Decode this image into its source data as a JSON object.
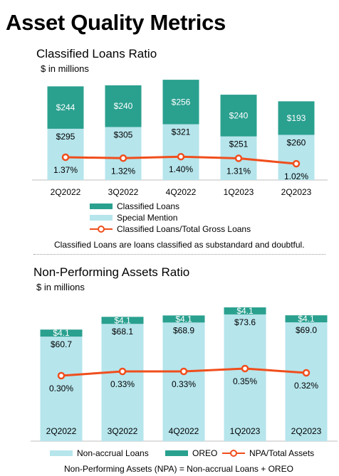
{
  "title": "Asset Quality Metrics",
  "colors": {
    "teal_dark": "#2aa08f",
    "teal_light": "#b6e5ec",
    "line": "#f04e1c"
  },
  "chart_data": [
    {
      "type": "bar",
      "title": "Classified Loans Ratio",
      "subtitle": "$ in millions",
      "stacked": true,
      "categories": [
        "2Q2022",
        "3Q2022",
        "4Q2022",
        "1Q2023",
        "2Q2023"
      ],
      "series": [
        {
          "name": "Special Mention",
          "type": "bar",
          "values": [
            295,
            305,
            321,
            251,
            260
          ],
          "labels": [
            "$295",
            "$305",
            "$321",
            "$251",
            "$260"
          ],
          "color": "#b6e5ec"
        },
        {
          "name": "Classified Loans",
          "type": "bar",
          "values": [
            244,
            240,
            256,
            240,
            193
          ],
          "labels": [
            "$244",
            "$240",
            "$256",
            "$240",
            "$193"
          ],
          "color": "#2aa08f"
        },
        {
          "name": "Classified Loans/Total Gross Loans",
          "type": "line",
          "values": [
            1.37,
            1.32,
            1.4,
            1.31,
            1.02
          ],
          "labels": [
            "1.37%",
            "1.32%",
            "1.40%",
            "1.31%",
            "1.02%"
          ],
          "color": "#f04e1c"
        }
      ],
      "legend": "bottom",
      "grid": false,
      "note": "Classified Loans are loans classified as substandard and doubtful."
    },
    {
      "type": "bar",
      "title": "Non-Performing Assets Ratio",
      "subtitle": "$ in millions",
      "stacked": true,
      "categories": [
        "2Q2022",
        "3Q2022",
        "4Q2022",
        "1Q2023",
        "2Q2023"
      ],
      "series": [
        {
          "name": "Non-accrual Loans",
          "type": "bar",
          "values": [
            60.7,
            68.1,
            68.9,
            73.6,
            69.0
          ],
          "labels": [
            "$60.7",
            "$68.1",
            "$68.9",
            "$73.6",
            "$69.0"
          ],
          "color": "#b6e5ec"
        },
        {
          "name": "OREO",
          "type": "bar",
          "values": [
            4.1,
            4.1,
            4.1,
            4.1,
            4.1
          ],
          "labels": [
            "$4.1",
            "$4.1",
            "$4.1",
            "$4.1",
            "$4.1"
          ],
          "color": "#2aa08f"
        },
        {
          "name": "NPA/Total Assets",
          "type": "line",
          "values": [
            0.3,
            0.33,
            0.33,
            0.35,
            0.32
          ],
          "labels": [
            "0.30%",
            "0.33%",
            "0.33%",
            "0.35%",
            "0.32%"
          ],
          "color": "#f04e1c"
        }
      ],
      "legend": "bottom",
      "grid": false,
      "note": "Non-Performing Assets (NPA) = Non-accrual Loans + OREO"
    }
  ]
}
